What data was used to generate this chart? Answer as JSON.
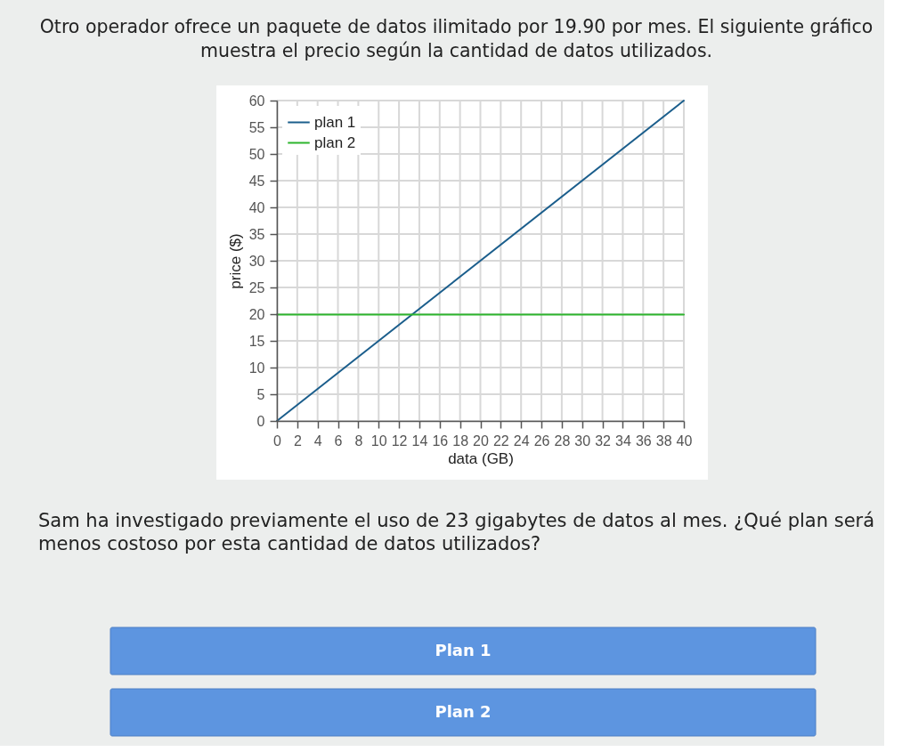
{
  "chart_data": {
    "type": "line",
    "title": "Otro operador ofrece un paquete de datos ilimitado por 19.90 por mes. El siguiente gráfico muestra el precio según la cantidad de datos utilizados.",
    "xlabel": "data (GB)",
    "ylabel": "price ($)",
    "x": [
      0,
      40
    ],
    "series": [
      {
        "name": "plan 1",
        "color": "#1b5e8c",
        "values": [
          0,
          60
        ]
      },
      {
        "name": "plan 2",
        "color": "#2db52d",
        "values": [
          19.9,
          19.9
        ]
      }
    ],
    "xlim": [
      0,
      40
    ],
    "xticks": [
      0,
      2,
      4,
      6,
      8,
      10,
      12,
      14,
      16,
      18,
      20,
      22,
      24,
      26,
      28,
      30,
      32,
      34,
      36,
      38,
      40
    ],
    "ylim": [
      0,
      60
    ],
    "yticks": [
      0,
      5,
      10,
      15,
      20,
      25,
      30,
      35,
      40,
      45,
      50,
      55,
      60
    ],
    "grid": true,
    "legend": "top left",
    "annotations": [
      "Sam ha investigado previamente el uso de 23 gigabytes de datos al mes. ¿Qué plan será menos costoso por esta cantidad de datos utilizados?",
      "Plan 1",
      "Plan 2"
    ]
  }
}
